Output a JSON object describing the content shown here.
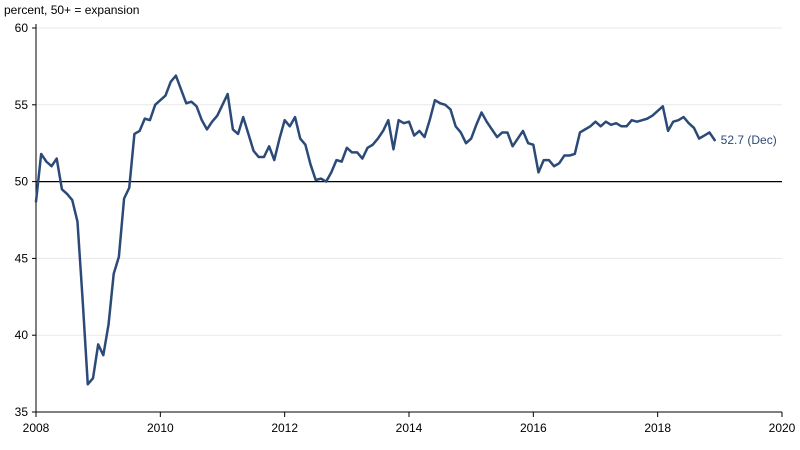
{
  "chart_data": {
    "type": "line",
    "title": "",
    "unit_label": "percent, 50+ = expansion",
    "xlim": [
      2008,
      2020
    ],
    "ylim": [
      35,
      60
    ],
    "x_ticks": [
      2008,
      2010,
      2012,
      2014,
      2016,
      2018,
      2020
    ],
    "y_ticks": [
      35,
      40,
      45,
      50,
      55,
      60
    ],
    "grid": "horizontal",
    "reference_line": 50,
    "end_label": "52.7 (Dec)",
    "colors": {
      "series": "#2c4a78",
      "reference": "#000000",
      "grid": "#e8e8e8",
      "axis": "#000000"
    },
    "series": [
      {
        "x": [
          2008.0,
          2008.083,
          2008.167,
          2008.25,
          2008.333,
          2008.417,
          2008.5,
          2008.583,
          2008.667,
          2008.75,
          2008.833,
          2008.917,
          2009.0,
          2009.083,
          2009.167,
          2009.25,
          2009.333,
          2009.417,
          2009.5,
          2009.583,
          2009.667,
          2009.75,
          2009.833,
          2009.917,
          2010.0,
          2010.083,
          2010.167,
          2010.25,
          2010.333,
          2010.417,
          2010.5,
          2010.583,
          2010.667,
          2010.75,
          2010.833,
          2010.917,
          2011.0,
          2011.083,
          2011.167,
          2011.25,
          2011.333,
          2011.417,
          2011.5,
          2011.583,
          2011.667,
          2011.75,
          2011.833,
          2011.917,
          2012.0,
          2012.083,
          2012.167,
          2012.25,
          2012.333,
          2012.417,
          2012.5,
          2012.583,
          2012.667,
          2012.75,
          2012.833,
          2012.917,
          2013.0,
          2013.083,
          2013.167,
          2013.25,
          2013.333,
          2013.417,
          2013.5,
          2013.583,
          2013.667,
          2013.75,
          2013.833,
          2013.917,
          2014.0,
          2014.083,
          2014.167,
          2014.25,
          2014.333,
          2014.417,
          2014.5,
          2014.583,
          2014.667,
          2014.75,
          2014.833,
          2014.917,
          2015.0,
          2015.083,
          2015.167,
          2015.25,
          2015.333,
          2015.417,
          2015.5,
          2015.583,
          2015.667,
          2015.75,
          2015.833,
          2015.917,
          2016.0,
          2016.083,
          2016.167,
          2016.25,
          2016.333,
          2016.417,
          2016.5,
          2016.583,
          2016.667,
          2016.75,
          2016.833,
          2016.917,
          2017.0,
          2017.083,
          2017.167,
          2017.25,
          2017.333,
          2017.417,
          2017.5,
          2017.583,
          2017.667,
          2017.75,
          2017.833,
          2017.917,
          2018.0,
          2018.083,
          2018.167,
          2018.25,
          2018.333,
          2018.417,
          2018.5,
          2018.583,
          2018.667,
          2018.75,
          2018.833,
          2018.917
        ],
        "y": [
          48.7,
          51.8,
          51.3,
          51.0,
          51.5,
          49.5,
          49.2,
          48.8,
          47.4,
          42.3,
          36.8,
          37.2,
          39.4,
          38.7,
          40.7,
          44.0,
          45.1,
          48.9,
          49.6,
          53.1,
          53.3,
          54.1,
          54.0,
          55.0,
          55.3,
          55.6,
          56.5,
          56.9,
          56.0,
          55.1,
          55.2,
          54.9,
          54.0,
          53.4,
          53.9,
          54.3,
          55.0,
          55.7,
          53.4,
          53.1,
          54.2,
          53.1,
          52.0,
          51.6,
          51.6,
          52.3,
          51.4,
          52.8,
          54.0,
          53.6,
          54.2,
          52.8,
          52.4,
          51.1,
          50.1,
          50.2,
          50.0,
          50.6,
          51.4,
          51.3,
          52.2,
          51.9,
          51.9,
          51.5,
          52.2,
          52.4,
          52.8,
          53.3,
          54.0,
          52.1,
          54.0,
          53.8,
          53.9,
          53.0,
          53.3,
          52.9,
          54.0,
          55.3,
          55.1,
          55.0,
          54.7,
          53.6,
          53.2,
          52.5,
          52.8,
          53.7,
          54.5,
          53.9,
          53.4,
          52.9,
          53.2,
          53.2,
          52.3,
          52.8,
          53.3,
          52.5,
          52.4,
          50.6,
          51.4,
          51.4,
          51.0,
          51.2,
          51.7,
          51.7,
          51.8,
          53.2,
          53.4,
          53.6,
          53.9,
          53.6,
          53.9,
          53.7,
          53.8,
          53.6,
          53.6,
          54.0,
          53.9,
          54.0,
          54.1,
          54.3,
          54.6,
          54.9,
          53.3,
          53.9,
          54.0,
          54.2,
          53.8,
          53.5,
          52.8,
          53.0,
          53.2,
          52.7
        ]
      }
    ]
  }
}
